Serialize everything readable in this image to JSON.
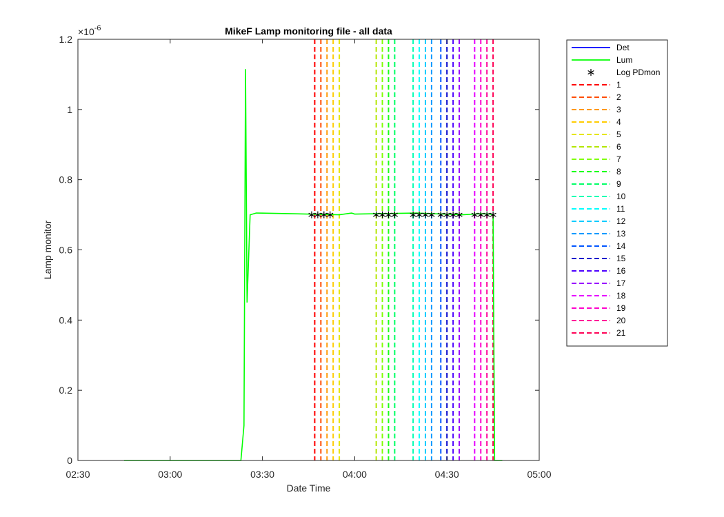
{
  "chart_data": {
    "type": "line",
    "title": "MikeF Lamp monitoring file - all data",
    "xlabel": "Date Time",
    "ylabel": "Lamp monitor",
    "y_exponent_label": "×10",
    "y_exponent_power": "-6",
    "x_range": [
      "02:30",
      "05:00"
    ],
    "ylim": [
      0,
      1.2e-06
    ],
    "x_ticks": [
      "02:30",
      "03:00",
      "03:30",
      "04:00",
      "04:30",
      "05:00"
    ],
    "y_ticks": [
      {
        "value": 0,
        "label": "0"
      },
      {
        "value": 2e-07,
        "label": "0.2"
      },
      {
        "value": 4e-07,
        "label": "0.4"
      },
      {
        "value": 6e-07,
        "label": "0.6"
      },
      {
        "value": 8e-07,
        "label": "0.8"
      },
      {
        "value": 1e-06,
        "label": "1"
      },
      {
        "value": 1.2e-06,
        "label": "1.2"
      }
    ],
    "grid": false,
    "legend_placement": "outside-right",
    "series": [
      {
        "name": "Det",
        "color": "#0000ff",
        "style": "solid",
        "points": []
      },
      {
        "name": "Lum",
        "color": "#00ff00",
        "style": "solid",
        "points": [
          [
            "02:45",
            0
          ],
          [
            "03:23",
            0
          ],
          [
            "03:24",
            1e-07
          ],
          [
            "03:24:30",
            1.115e-06
          ],
          [
            "03:25",
            4.5e-07
          ],
          [
            "03:26",
            7e-07
          ],
          [
            "03:28",
            7.05e-07
          ],
          [
            "03:40",
            7.03e-07
          ],
          [
            "03:55",
            7e-07
          ],
          [
            "03:59",
            7.05e-07
          ],
          [
            "04:00",
            7.02e-07
          ],
          [
            "04:20",
            7.05e-07
          ],
          [
            "04:35",
            7e-07
          ],
          [
            "04:41",
            7.03e-07
          ],
          [
            "04:44",
            7.02e-07
          ],
          [
            "04:45",
            7e-07
          ],
          [
            "04:45:30",
            0
          ],
          [
            "04:48",
            0
          ]
        ]
      },
      {
        "name": "Log PDmon",
        "color": "#000000",
        "marker": "*",
        "points": [
          [
            "03:46",
            7e-07
          ],
          [
            "03:48",
            7e-07
          ],
          [
            "03:50",
            7e-07
          ],
          [
            "03:52",
            7e-07
          ],
          [
            "04:07",
            7e-07
          ],
          [
            "04:09",
            7e-07
          ],
          [
            "04:11",
            7e-07
          ],
          [
            "04:13",
            7e-07
          ],
          [
            "04:19",
            7e-07
          ],
          [
            "04:21",
            7e-07
          ],
          [
            "04:23",
            7e-07
          ],
          [
            "04:25",
            7e-07
          ],
          [
            "04:28",
            7e-07
          ],
          [
            "04:30",
            7e-07
          ],
          [
            "04:32",
            7e-07
          ],
          [
            "04:34",
            7e-07
          ],
          [
            "04:39",
            7e-07
          ],
          [
            "04:41",
            7e-07
          ],
          [
            "04:43",
            7e-07
          ],
          [
            "04:45",
            7e-07
          ]
        ]
      }
    ],
    "vlines": [
      {
        "name": "1",
        "time": "03:47",
        "color": "#ff0000"
      },
      {
        "name": "2",
        "time": "03:49",
        "color": "#ff4d00"
      },
      {
        "name": "3",
        "time": "03:51",
        "color": "#ff9900"
      },
      {
        "name": "4",
        "time": "03:53",
        "color": "#ffcc00"
      },
      {
        "name": "5",
        "time": "03:55",
        "color": "#e6e600"
      },
      {
        "name": "6",
        "time": "04:07",
        "color": "#b3e600"
      },
      {
        "name": "7",
        "time": "04:09",
        "color": "#80ff00"
      },
      {
        "name": "8",
        "time": "04:11",
        "color": "#1aff1a"
      },
      {
        "name": "9",
        "time": "04:13",
        "color": "#00ff66"
      },
      {
        "name": "10",
        "time": "04:19",
        "color": "#00ffb3"
      },
      {
        "name": "11",
        "time": "04:21",
        "color": "#00ffff"
      },
      {
        "name": "12",
        "time": "04:23",
        "color": "#00ccff"
      },
      {
        "name": "13",
        "time": "04:25",
        "color": "#0099ff"
      },
      {
        "name": "14",
        "time": "04:28",
        "color": "#0055ff"
      },
      {
        "name": "15",
        "time": "04:30",
        "color": "#0000cc"
      },
      {
        "name": "16",
        "time": "04:32",
        "color": "#4d00ff"
      },
      {
        "name": "17",
        "time": "04:34",
        "color": "#9900ff"
      },
      {
        "name": "18",
        "time": "04:39",
        "color": "#e600ff"
      },
      {
        "name": "19",
        "time": "04:41",
        "color": "#ff00cc"
      },
      {
        "name": "20",
        "time": "04:43",
        "color": "#ff0099"
      },
      {
        "name": "21",
        "time": "04:45",
        "color": "#ff0055"
      }
    ]
  }
}
